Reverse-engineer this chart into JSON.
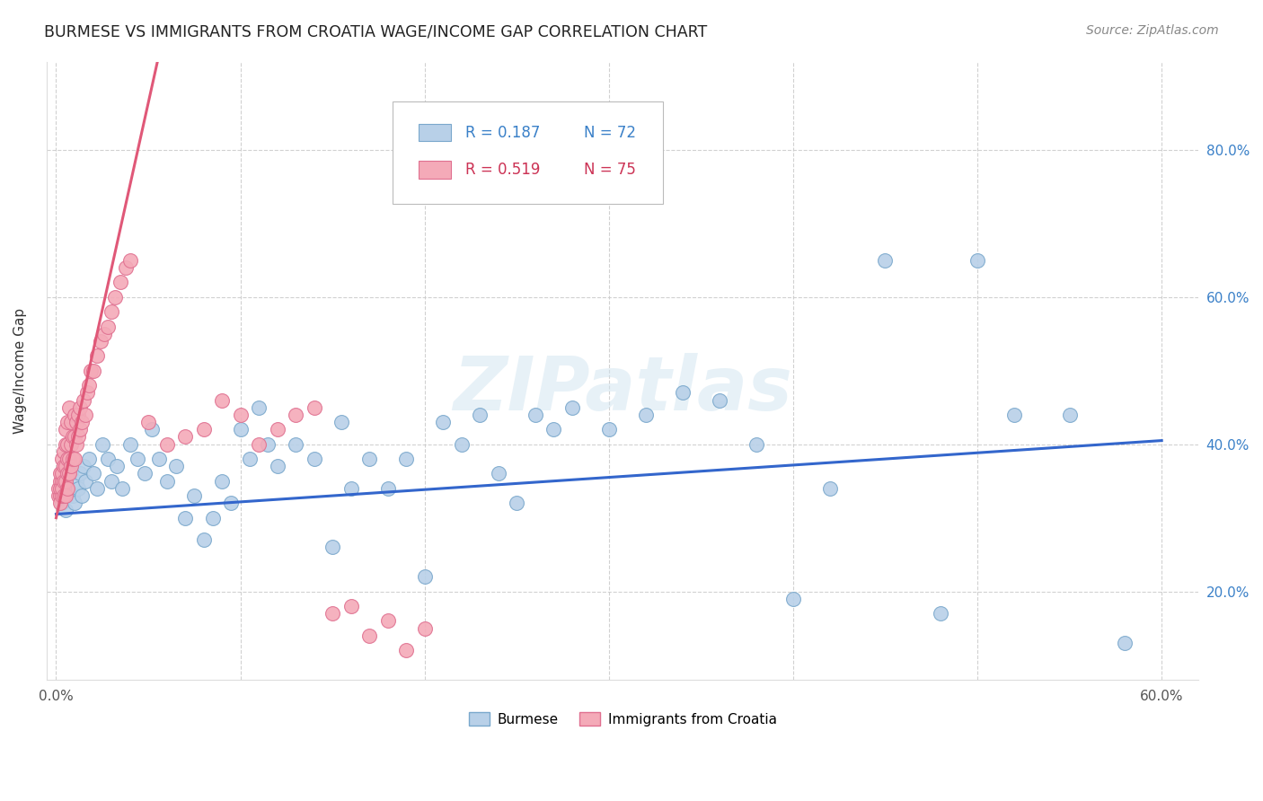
{
  "title": "BURMESE VS IMMIGRANTS FROM CROATIA WAGE/INCOME GAP CORRELATION CHART",
  "source": "Source: ZipAtlas.com",
  "ylabel": "Wage/Income Gap",
  "watermark": "ZIPatlas",
  "burmese_color": "#b8d0e8",
  "burmese_edge": "#7aa8cc",
  "croatia_color": "#f4aab8",
  "croatia_edge": "#e07090",
  "blue_line_color": "#3366cc",
  "pink_line_color": "#e05878",
  "burmese_x": [
    0.002,
    0.003,
    0.004,
    0.005,
    0.005,
    0.006,
    0.007,
    0.008,
    0.009,
    0.01,
    0.011,
    0.012,
    0.013,
    0.014,
    0.015,
    0.016,
    0.018,
    0.02,
    0.022,
    0.025,
    0.028,
    0.03,
    0.033,
    0.036,
    0.04,
    0.044,
    0.048,
    0.052,
    0.056,
    0.06,
    0.065,
    0.07,
    0.075,
    0.08,
    0.085,
    0.09,
    0.095,
    0.1,
    0.105,
    0.11,
    0.115,
    0.12,
    0.13,
    0.14,
    0.15,
    0.155,
    0.16,
    0.17,
    0.18,
    0.19,
    0.2,
    0.21,
    0.22,
    0.23,
    0.24,
    0.25,
    0.26,
    0.27,
    0.28,
    0.3,
    0.32,
    0.34,
    0.36,
    0.38,
    0.4,
    0.42,
    0.45,
    0.48,
    0.5,
    0.52,
    0.55,
    0.58
  ],
  "burmese_y": [
    0.33,
    0.32,
    0.34,
    0.35,
    0.31,
    0.33,
    0.34,
    0.36,
    0.33,
    0.32,
    0.35,
    0.34,
    0.36,
    0.33,
    0.37,
    0.35,
    0.38,
    0.36,
    0.34,
    0.4,
    0.38,
    0.35,
    0.37,
    0.34,
    0.4,
    0.38,
    0.36,
    0.42,
    0.38,
    0.35,
    0.37,
    0.3,
    0.33,
    0.27,
    0.3,
    0.35,
    0.32,
    0.42,
    0.38,
    0.45,
    0.4,
    0.37,
    0.4,
    0.38,
    0.26,
    0.43,
    0.34,
    0.38,
    0.34,
    0.38,
    0.22,
    0.43,
    0.4,
    0.44,
    0.36,
    0.32,
    0.44,
    0.42,
    0.45,
    0.42,
    0.44,
    0.47,
    0.46,
    0.4,
    0.19,
    0.34,
    0.65,
    0.17,
    0.65,
    0.44,
    0.44,
    0.13
  ],
  "croatia_x": [
    0.001,
    0.001,
    0.002,
    0.002,
    0.002,
    0.002,
    0.002,
    0.003,
    0.003,
    0.003,
    0.003,
    0.003,
    0.004,
    0.004,
    0.004,
    0.004,
    0.005,
    0.005,
    0.005,
    0.005,
    0.005,
    0.006,
    0.006,
    0.006,
    0.006,
    0.006,
    0.007,
    0.007,
    0.007,
    0.008,
    0.008,
    0.008,
    0.009,
    0.009,
    0.01,
    0.01,
    0.01,
    0.011,
    0.011,
    0.012,
    0.012,
    0.013,
    0.013,
    0.014,
    0.015,
    0.016,
    0.017,
    0.018,
    0.019,
    0.02,
    0.022,
    0.024,
    0.026,
    0.028,
    0.03,
    0.032,
    0.035,
    0.038,
    0.04,
    0.05,
    0.06,
    0.07,
    0.08,
    0.09,
    0.1,
    0.11,
    0.12,
    0.13,
    0.14,
    0.15,
    0.16,
    0.17,
    0.18,
    0.19,
    0.2
  ],
  "croatia_y": [
    0.33,
    0.34,
    0.33,
    0.35,
    0.32,
    0.34,
    0.36,
    0.33,
    0.35,
    0.34,
    0.36,
    0.38,
    0.33,
    0.35,
    0.37,
    0.39,
    0.33,
    0.35,
    0.37,
    0.4,
    0.42,
    0.34,
    0.36,
    0.38,
    0.4,
    0.43,
    0.36,
    0.38,
    0.45,
    0.37,
    0.4,
    0.43,
    0.38,
    0.41,
    0.38,
    0.41,
    0.44,
    0.4,
    0.43,
    0.41,
    0.44,
    0.42,
    0.45,
    0.43,
    0.46,
    0.44,
    0.47,
    0.48,
    0.5,
    0.5,
    0.52,
    0.54,
    0.55,
    0.56,
    0.58,
    0.6,
    0.62,
    0.64,
    0.65,
    0.43,
    0.4,
    0.41,
    0.42,
    0.46,
    0.44,
    0.4,
    0.42,
    0.44,
    0.45,
    0.17,
    0.18,
    0.14,
    0.16,
    0.12,
    0.15
  ],
  "bur_trend_x": [
    0.0,
    0.6
  ],
  "bur_trend_y": [
    0.305,
    0.405
  ],
  "cro_trend_x": [
    0.0,
    0.055
  ],
  "cro_trend_y": [
    0.3,
    0.92
  ],
  "xlim": [
    -0.005,
    0.62
  ],
  "ylim": [
    0.08,
    0.92
  ],
  "ytick_vals": [
    0.2,
    0.4,
    0.6,
    0.8
  ],
  "ytick_labels": [
    "20.0%",
    "40.0%",
    "60.0%",
    "80.0%"
  ],
  "xtick_vals": [
    0.0,
    0.1,
    0.2,
    0.3,
    0.4,
    0.5,
    0.6
  ],
  "xtick_labels": [
    "0.0%",
    "",
    "",
    "",
    "",
    "",
    "60.0%"
  ]
}
